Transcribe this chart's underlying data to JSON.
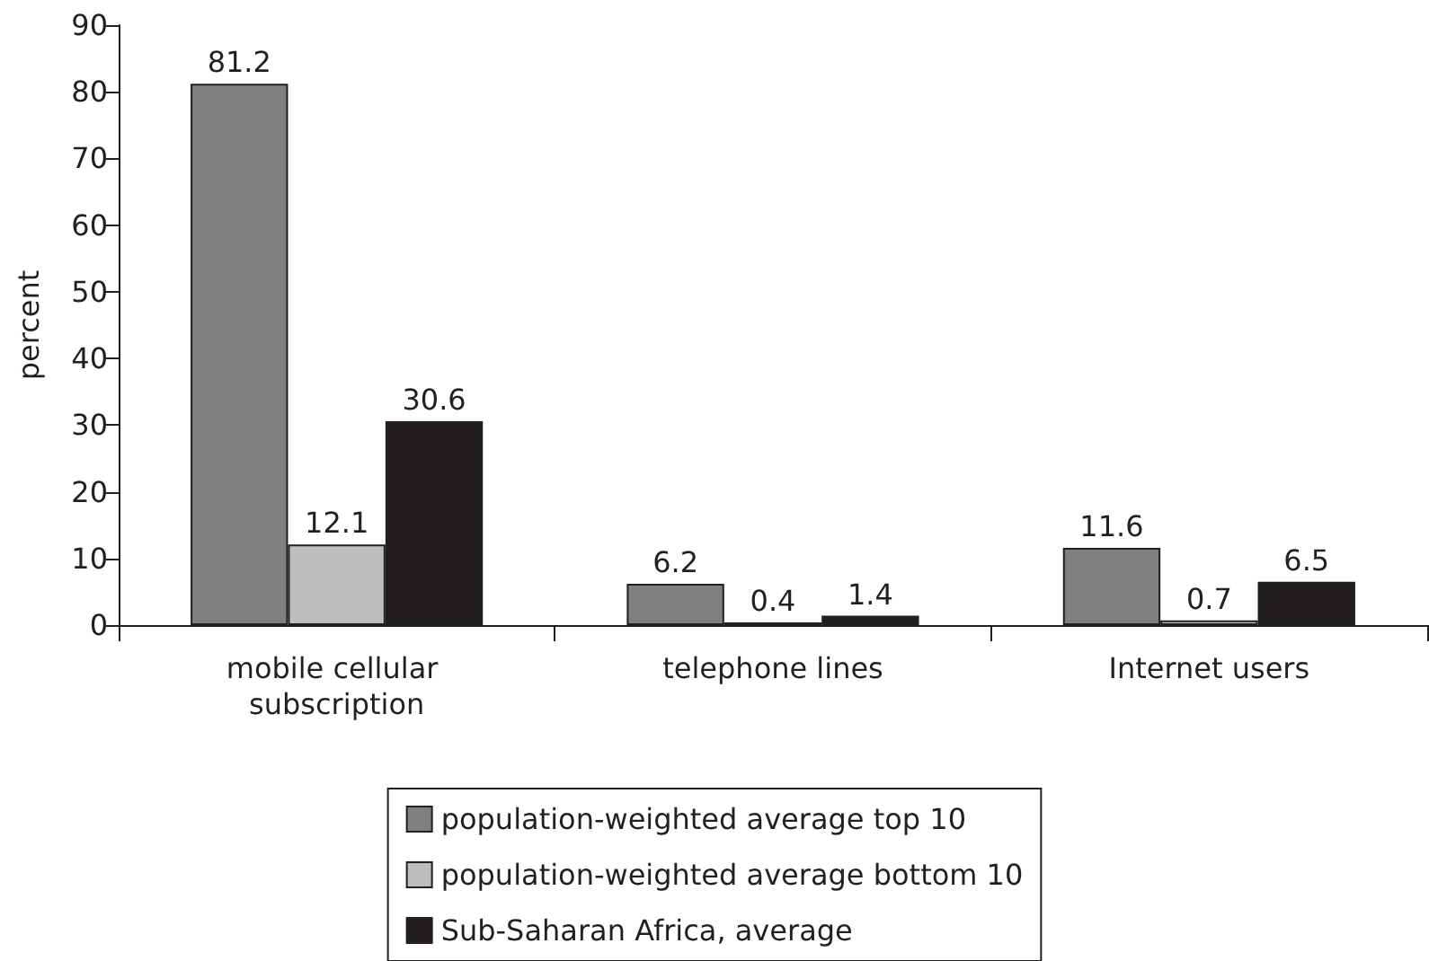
{
  "chart_data": {
    "type": "bar",
    "ylabel": "percent",
    "categories": [
      "mobile cellular subscription",
      "telephone lines",
      "Internet users"
    ],
    "series": [
      {
        "name": "population-weighted average top 10",
        "color": "#808080",
        "values": [
          81.2,
          6.2,
          11.6
        ]
      },
      {
        "name": "population-weighted average bottom 10",
        "color": "#bdbdbd",
        "values": [
          12.1,
          0.4,
          0.7
        ]
      },
      {
        "name": "Sub-Saharan Africa, average",
        "color": "#231f20",
        "values": [
          30.6,
          1.4,
          6.5
        ]
      }
    ],
    "ylim": [
      0,
      90
    ],
    "yticks": [
      0,
      10,
      20,
      30,
      40,
      50,
      60,
      70,
      80,
      90
    ],
    "grid": false,
    "legend": "bottom",
    "data_labels": true
  }
}
